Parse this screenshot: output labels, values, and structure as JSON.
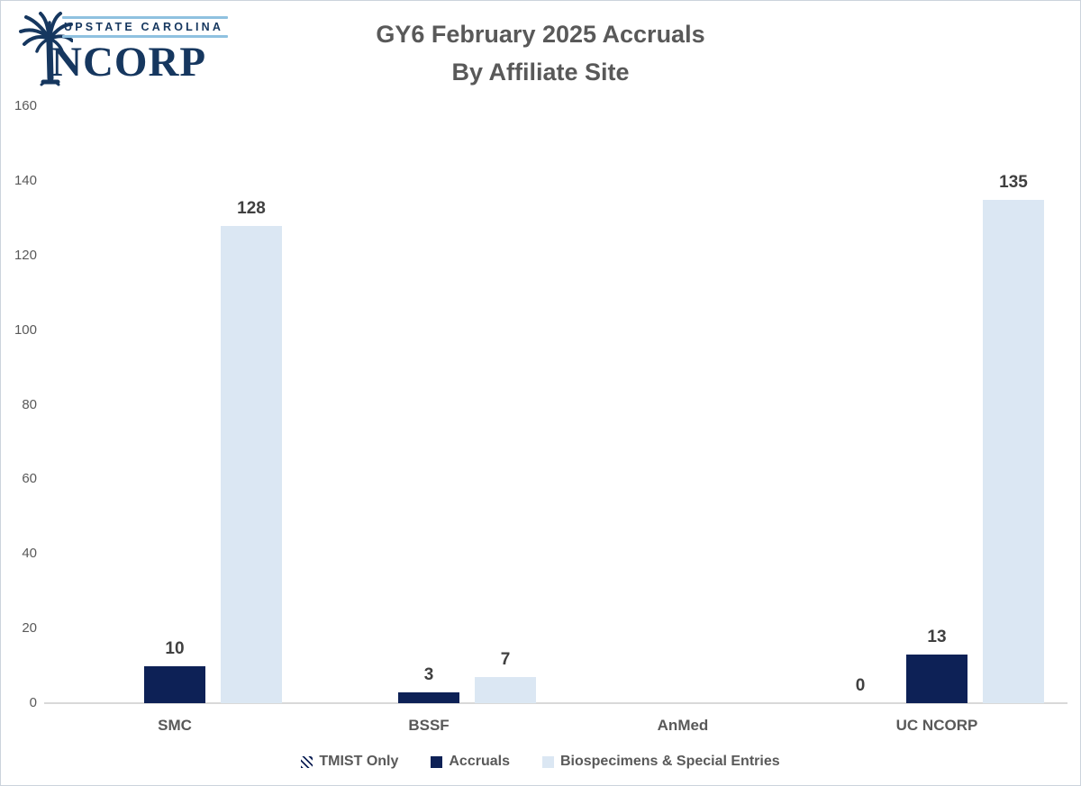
{
  "logo": {
    "top_text": "UPSTATE CAROLINA",
    "name": "NCORP",
    "navy": "#16375f",
    "light_blue": "#8fc1e0",
    "icon": "palmetto-tree-icon"
  },
  "chart_data": {
    "type": "bar",
    "title_lines": [
      "GY6 February 2025 Accruals",
      "By Affiliate Site"
    ],
    "categories": [
      "SMC",
      "BSSF",
      "AnMed",
      "UC NCORP"
    ],
    "series": [
      {
        "name": "TMIST Only",
        "color": "#0d2156",
        "pattern": "diagonal-stripe",
        "values": [
          null,
          null,
          null,
          0
        ]
      },
      {
        "name": "Accruals",
        "color": "#0d2156",
        "pattern": "solid",
        "values": [
          10,
          3,
          null,
          13
        ]
      },
      {
        "name": "Biospecimens & Special Entries",
        "color": "#dbe7f3",
        "pattern": "solid",
        "values": [
          128,
          7,
          null,
          135
        ]
      }
    ],
    "ylim": [
      0,
      160
    ],
    "yticks": [
      0,
      20,
      40,
      60,
      80,
      100,
      120,
      140,
      160
    ],
    "grid": false,
    "legend_position": "bottom",
    "colors": {
      "title_text": "#595959",
      "axis_text": "#595959",
      "data_label_text": "#404040",
      "axis_line": "#d9d9d9"
    }
  }
}
